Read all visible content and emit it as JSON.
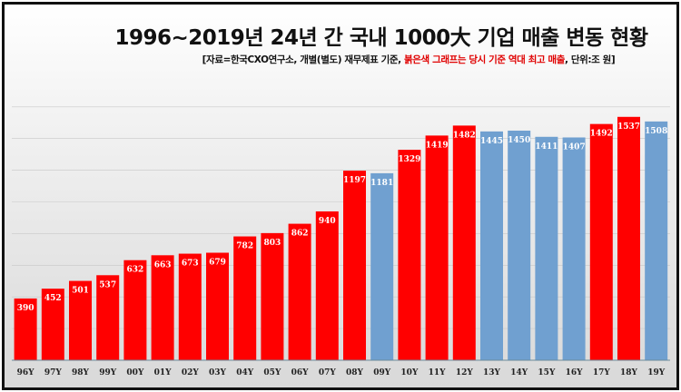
{
  "chart_data": {
    "type": "bar",
    "title": "1996~2019년 24년 간 국내 1000大 기업 매출 변동 현황",
    "subtitle": {
      "pre": "[자료=한국CXO연구소, 개별(별도) 재무제표 기준, ",
      "highlight": "붉은색 그래프는 당시 기준 역대 최고 매출",
      "post": ", 단위:조 원]"
    },
    "categories": [
      "96Y",
      "97Y",
      "98Y",
      "99Y",
      "00Y",
      "01Y",
      "02Y",
      "03Y",
      "04Y",
      "05Y",
      "06Y",
      "07Y",
      "08Y",
      "09Y",
      "10Y",
      "11Y",
      "12Y",
      "13Y",
      "14Y",
      "15Y",
      "16Y",
      "17Y",
      "18Y",
      "19Y"
    ],
    "values": [
      390,
      452,
      501,
      537,
      632,
      663,
      673,
      679,
      782,
      803,
      862,
      940,
      1197,
      1181,
      1329,
      1419,
      1482,
      1445,
      1450,
      1411,
      1407,
      1492,
      1537,
      1508
    ],
    "record_high": [
      true,
      true,
      true,
      true,
      true,
      true,
      true,
      true,
      true,
      true,
      true,
      true,
      true,
      false,
      true,
      true,
      true,
      false,
      false,
      false,
      false,
      true,
      true,
      false
    ],
    "colors": {
      "record": "#ff0000",
      "other": "#70a0d0"
    },
    "unit": "조 원",
    "ylim": [
      0,
      1700
    ],
    "grid": true,
    "legend": "none"
  }
}
